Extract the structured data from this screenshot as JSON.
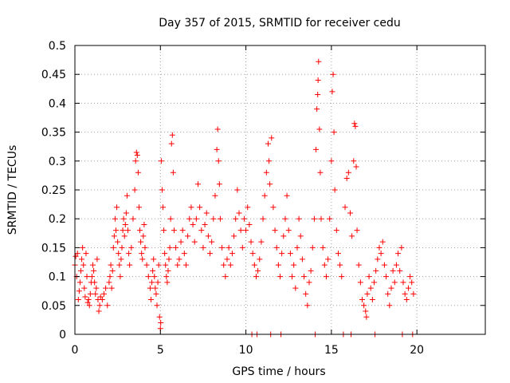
{
  "chart_data": {
    "type": "scatter",
    "title": "Day 357 of 2015, SRMTID for receiver cedu",
    "xlabel": "GPS time / hours",
    "ylabel": "SRMTID / TECUs",
    "xlim": [
      0,
      24
    ],
    "ylim": [
      0,
      0.5
    ],
    "xticks": [
      0,
      5,
      10,
      15,
      20
    ],
    "xtick_labels": [
      "0",
      "5",
      "10",
      "15",
      "20"
    ],
    "yticks": [
      0,
      0.05,
      0.1,
      0.15,
      0.2,
      0.25,
      0.3,
      0.35,
      0.4,
      0.45,
      0.5
    ],
    "ytick_labels": [
      "0",
      "0.05",
      "0.1",
      "0.15",
      "0.2",
      "0.25",
      "0.3",
      "0.35",
      "0.4",
      "0.45",
      "0.5"
    ],
    "grid": true,
    "marker": "+",
    "series": [
      {
        "name": "SRMTID",
        "color": "#ff0000",
        "points": [
          [
            0.0,
            0.12
          ],
          [
            0.05,
            0.135
          ],
          [
            0.1,
            0.1
          ],
          [
            0.15,
            0.14
          ],
          [
            0.2,
            0.06
          ],
          [
            0.25,
            0.075
          ],
          [
            0.3,
            0.09
          ],
          [
            0.35,
            0.11
          ],
          [
            0.4,
            0.13
          ],
          [
            0.45,
            0.15
          ],
          [
            0.5,
            0.12
          ],
          [
            0.55,
            0.08
          ],
          [
            0.6,
            0.065
          ],
          [
            0.65,
            0.14
          ],
          [
            0.7,
            0.1
          ],
          [
            0.75,
            0.055
          ],
          [
            0.8,
            0.06
          ],
          [
            0.85,
            0.05
          ],
          [
            0.9,
            0.07
          ],
          [
            0.95,
            0.09
          ],
          [
            1.0,
            0.1
          ],
          [
            1.05,
            0.12
          ],
          [
            1.1,
            0.11
          ],
          [
            1.15,
            0.09
          ],
          [
            1.2,
            0.07
          ],
          [
            1.25,
            0.08
          ],
          [
            1.3,
            0.13
          ],
          [
            1.35,
            0.06
          ],
          [
            1.4,
            0.04
          ],
          [
            1.45,
            0.05
          ],
          [
            1.5,
            0.065
          ],
          [
            1.6,
            0.06
          ],
          [
            1.7,
            0.07
          ],
          [
            1.8,
            0.08
          ],
          [
            1.9,
            0.05
          ],
          [
            2.0,
            0.09
          ],
          [
            2.05,
            0.1
          ],
          [
            2.1,
            0.12
          ],
          [
            2.15,
            0.08
          ],
          [
            2.2,
            0.11
          ],
          [
            2.25,
            0.15
          ],
          [
            2.3,
            0.17
          ],
          [
            2.35,
            0.2
          ],
          [
            2.4,
            0.18
          ],
          [
            2.45,
            0.22
          ],
          [
            2.5,
            0.16
          ],
          [
            2.55,
            0.14
          ],
          [
            2.6,
            0.12
          ],
          [
            2.65,
            0.1
          ],
          [
            2.7,
            0.13
          ],
          [
            2.75,
            0.15
          ],
          [
            2.8,
            0.18
          ],
          [
            2.85,
            0.2
          ],
          [
            2.9,
            0.17
          ],
          [
            2.95,
            0.19
          ],
          [
            3.0,
            0.21
          ],
          [
            3.05,
            0.24
          ],
          [
            3.1,
            0.18
          ],
          [
            3.15,
            0.14
          ],
          [
            3.2,
            0.12
          ],
          [
            3.3,
            0.15
          ],
          [
            3.4,
            0.2
          ],
          [
            3.5,
            0.25
          ],
          [
            3.55,
            0.3
          ],
          [
            3.6,
            0.315
          ],
          [
            3.65,
            0.31
          ],
          [
            3.7,
            0.28
          ],
          [
            3.75,
            0.22
          ],
          [
            3.8,
            0.18
          ],
          [
            3.85,
            0.16
          ],
          [
            3.9,
            0.14
          ],
          [
            3.95,
            0.13
          ],
          [
            4.0,
            0.17
          ],
          [
            4.05,
            0.19
          ],
          [
            4.1,
            0.15
          ],
          [
            4.2,
            0.12
          ],
          [
            4.3,
            0.1
          ],
          [
            4.4,
            0.08
          ],
          [
            4.45,
            0.06
          ],
          [
            4.5,
            0.09
          ],
          [
            4.55,
            0.11
          ],
          [
            4.6,
            0.13
          ],
          [
            4.65,
            0.1
          ],
          [
            4.7,
            0.08
          ],
          [
            4.75,
            0.07
          ],
          [
            4.8,
            0.05
          ],
          [
            4.85,
            0.09
          ],
          [
            4.9,
            0.12
          ],
          [
            4.95,
            0.03
          ],
          [
            5.0,
            0.01
          ],
          [
            5.02,
            0.02
          ],
          [
            5.05,
            0.3
          ],
          [
            5.1,
            0.25
          ],
          [
            5.15,
            0.22
          ],
          [
            5.2,
            0.18
          ],
          [
            5.25,
            0.14
          ],
          [
            5.3,
            0.12
          ],
          [
            5.35,
            0.1
          ],
          [
            5.4,
            0.09
          ],
          [
            5.45,
            0.11
          ],
          [
            5.5,
            0.13
          ],
          [
            5.55,
            0.15
          ],
          [
            5.6,
            0.2
          ],
          [
            5.65,
            0.33
          ],
          [
            5.7,
            0.345
          ],
          [
            5.75,
            0.28
          ],
          [
            5.8,
            0.18
          ],
          [
            5.9,
            0.15
          ],
          [
            6.0,
            0.12
          ],
          [
            6.1,
            0.13
          ],
          [
            6.2,
            0.16
          ],
          [
            6.3,
            0.18
          ],
          [
            6.4,
            0.14
          ],
          [
            6.5,
            0.12
          ],
          [
            6.6,
            0.17
          ],
          [
            6.7,
            0.2
          ],
          [
            6.8,
            0.22
          ],
          [
            6.9,
            0.19
          ],
          [
            7.0,
            0.16
          ],
          [
            7.1,
            0.2
          ],
          [
            7.2,
            0.26
          ],
          [
            7.3,
            0.22
          ],
          [
            7.4,
            0.18
          ],
          [
            7.5,
            0.15
          ],
          [
            7.6,
            0.19
          ],
          [
            7.7,
            0.21
          ],
          [
            7.8,
            0.17
          ],
          [
            7.9,
            0.14
          ],
          [
            8.0,
            0.16
          ],
          [
            8.1,
            0.2
          ],
          [
            8.2,
            0.24
          ],
          [
            8.3,
            0.32
          ],
          [
            8.35,
            0.355
          ],
          [
            8.4,
            0.3
          ],
          [
            8.45,
            0.26
          ],
          [
            8.5,
            0.2
          ],
          [
            8.6,
            0.15
          ],
          [
            8.7,
            0.12
          ],
          [
            8.8,
            0.1
          ],
          [
            8.9,
            0.13
          ],
          [
            9.0,
            0.15
          ],
          [
            9.1,
            0.12
          ],
          [
            9.2,
            0.14
          ],
          [
            9.3,
            0.17
          ],
          [
            9.4,
            0.2
          ],
          [
            9.5,
            0.25
          ],
          [
            9.6,
            0.21
          ],
          [
            9.7,
            0.18
          ],
          [
            9.8,
            0.15
          ],
          [
            9.9,
            0.2
          ],
          [
            10.0,
            0.18
          ],
          [
            10.1,
            0.22
          ],
          [
            10.2,
            0.19
          ],
          [
            10.3,
            0.16
          ],
          [
            10.35,
            0.0
          ],
          [
            10.4,
            0.14
          ],
          [
            10.5,
            0.12
          ],
          [
            10.6,
            0.1
          ],
          [
            10.65,
            0.0
          ],
          [
            10.7,
            0.11
          ],
          [
            10.8,
            0.13
          ],
          [
            10.9,
            0.16
          ],
          [
            11.0,
            0.2
          ],
          [
            11.1,
            0.24
          ],
          [
            11.2,
            0.28
          ],
          [
            11.3,
            0.33
          ],
          [
            11.35,
            0.3
          ],
          [
            11.4,
            0.26
          ],
          [
            11.45,
            0.0
          ],
          [
            11.5,
            0.34
          ],
          [
            11.6,
            0.22
          ],
          [
            11.7,
            0.18
          ],
          [
            11.8,
            0.15
          ],
          [
            11.9,
            0.12
          ],
          [
            12.0,
            0.1
          ],
          [
            12.05,
            0.0
          ],
          [
            12.1,
            0.14
          ],
          [
            12.2,
            0.17
          ],
          [
            12.3,
            0.2
          ],
          [
            12.4,
            0.24
          ],
          [
            12.5,
            0.18
          ],
          [
            12.6,
            0.14
          ],
          [
            12.7,
            0.1
          ],
          [
            12.8,
            0.12
          ],
          [
            12.9,
            0.08
          ],
          [
            13.0,
            0.15
          ],
          [
            13.1,
            0.2
          ],
          [
            13.2,
            0.17
          ],
          [
            13.3,
            0.13
          ],
          [
            13.4,
            0.1
          ],
          [
            13.5,
            0.07
          ],
          [
            13.6,
            0.05
          ],
          [
            13.7,
            0.09
          ],
          [
            13.8,
            0.11
          ],
          [
            13.9,
            0.15
          ],
          [
            14.0,
            0.2
          ],
          [
            14.05,
            0.0
          ],
          [
            14.1,
            0.32
          ],
          [
            14.15,
            0.39
          ],
          [
            14.2,
            0.415
          ],
          [
            14.22,
            0.44
          ],
          [
            14.25,
            0.472
          ],
          [
            14.3,
            0.355
          ],
          [
            14.35,
            0.28
          ],
          [
            14.4,
            0.2
          ],
          [
            14.5,
            0.15
          ],
          [
            14.6,
            0.12
          ],
          [
            14.7,
            0.1
          ],
          [
            14.8,
            0.13
          ],
          [
            14.9,
            0.2
          ],
          [
            15.0,
            0.3
          ],
          [
            15.05,
            0.42
          ],
          [
            15.1,
            0.45
          ],
          [
            15.15,
            0.35
          ],
          [
            15.2,
            0.25
          ],
          [
            15.3,
            0.18
          ],
          [
            15.4,
            0.14
          ],
          [
            15.5,
            0.12
          ],
          [
            15.6,
            0.1
          ],
          [
            15.7,
            0.0
          ],
          [
            15.8,
            0.22
          ],
          [
            15.9,
            0.27
          ],
          [
            16.0,
            0.28
          ],
          [
            16.1,
            0.21
          ],
          [
            16.15,
            0.0
          ],
          [
            16.2,
            0.17
          ],
          [
            16.3,
            0.3
          ],
          [
            16.35,
            0.365
          ],
          [
            16.4,
            0.36
          ],
          [
            16.45,
            0.29
          ],
          [
            16.5,
            0.18
          ],
          [
            16.6,
            0.12
          ],
          [
            16.7,
            0.09
          ],
          [
            16.8,
            0.06
          ],
          [
            16.9,
            0.05
          ],
          [
            17.0,
            0.04
          ],
          [
            17.05,
            0.03
          ],
          [
            17.1,
            0.07
          ],
          [
            17.2,
            0.1
          ],
          [
            17.3,
            0.08
          ],
          [
            17.4,
            0.06
          ],
          [
            17.5,
            0.09
          ],
          [
            17.55,
            0.0
          ],
          [
            17.6,
            0.11
          ],
          [
            17.7,
            0.13
          ],
          [
            17.8,
            0.15
          ],
          [
            17.9,
            0.14
          ],
          [
            18.0,
            0.16
          ],
          [
            18.1,
            0.12
          ],
          [
            18.2,
            0.1
          ],
          [
            18.3,
            0.07
          ],
          [
            18.4,
            0.05
          ],
          [
            18.5,
            0.08
          ],
          [
            18.6,
            0.11
          ],
          [
            18.7,
            0.09
          ],
          [
            18.8,
            0.12
          ],
          [
            18.9,
            0.14
          ],
          [
            19.0,
            0.11
          ],
          [
            19.1,
            0.15
          ],
          [
            19.15,
            0.0
          ],
          [
            19.2,
            0.09
          ],
          [
            19.3,
            0.07
          ],
          [
            19.4,
            0.06
          ],
          [
            19.5,
            0.08
          ],
          [
            19.6,
            0.1
          ],
          [
            19.7,
            0.09
          ],
          [
            19.75,
            0.0
          ],
          [
            19.8,
            0.07
          ]
        ]
      }
    ]
  }
}
